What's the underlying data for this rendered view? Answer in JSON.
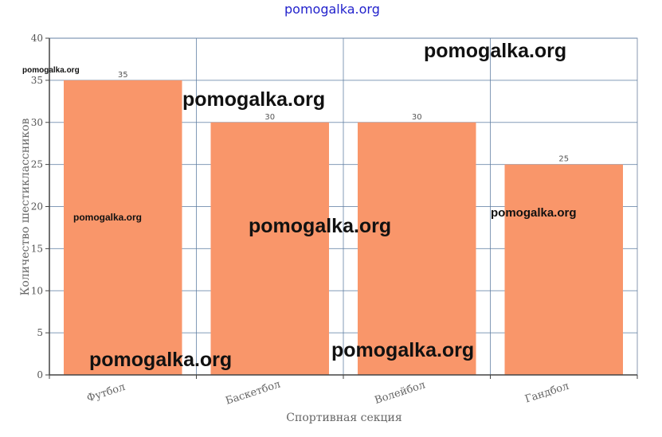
{
  "chart_data": {
    "type": "bar",
    "categories": [
      "Футбол",
      "Баскетбол",
      "Волейбол",
      "Гандбол"
    ],
    "values": [
      35,
      30,
      30,
      25
    ],
    "xlabel": "Спортивная секция",
    "ylabel": "Количество шестиклассников",
    "ylim": [
      0,
      40
    ],
    "yticks": [
      0,
      5,
      10,
      15,
      20,
      25,
      30,
      35,
      40
    ],
    "grid": true,
    "bar_color": "#f9966a",
    "grid_color": "#5a7aa0",
    "data_labels": [
      "35",
      "30",
      "30",
      "25"
    ]
  },
  "watermarks": {
    "top": "pomogalka.org",
    "w1": "pomogalka.org",
    "w2": "pomogalka.org",
    "w3": "pomogalka.org",
    "w4": "pomogalka.org",
    "w5": "pomogalka.org",
    "w6": "pomogalka.org",
    "w7": "pomogalka.org",
    "w8": "pomogalka.org"
  }
}
